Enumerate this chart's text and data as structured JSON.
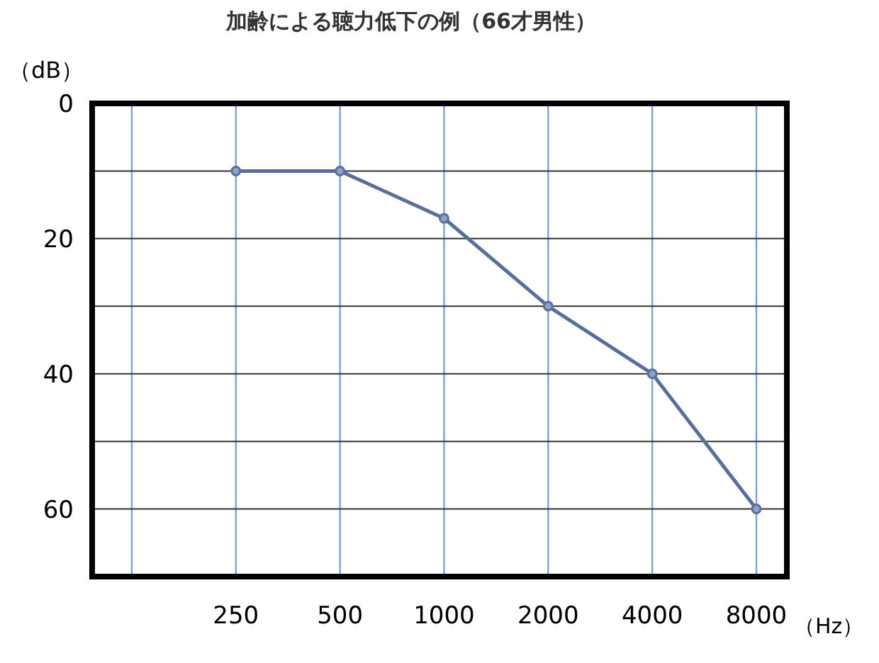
{
  "chart_data": {
    "type": "line",
    "title": "加齢による聴力低下の例（66才男性）",
    "xlabel": "（Hz）",
    "ylabel": "（dB）",
    "log": "x",
    "x": [
      250,
      500,
      1000,
      2000,
      4000,
      8000
    ],
    "series": [
      {
        "color": "#5a6e9c",
        "values": [
          10,
          10,
          17,
          30,
          40,
          60
        ]
      }
    ],
    "xlim": [
      96,
      9800
    ],
    "xticks": [
      {
        "value": 125,
        "label": null
      },
      250,
      500,
      1000,
      2000,
      4000,
      8000
    ],
    "ylim": [
      70,
      0
    ],
    "yticks": [
      0,
      {
        "value": 10,
        "label": null
      },
      20,
      {
        "value": 30,
        "label": null
      },
      40,
      {
        "value": 50,
        "label": null
      },
      60
    ],
    "grid": true,
    "marker": "circle",
    "line_style": "solid"
  }
}
